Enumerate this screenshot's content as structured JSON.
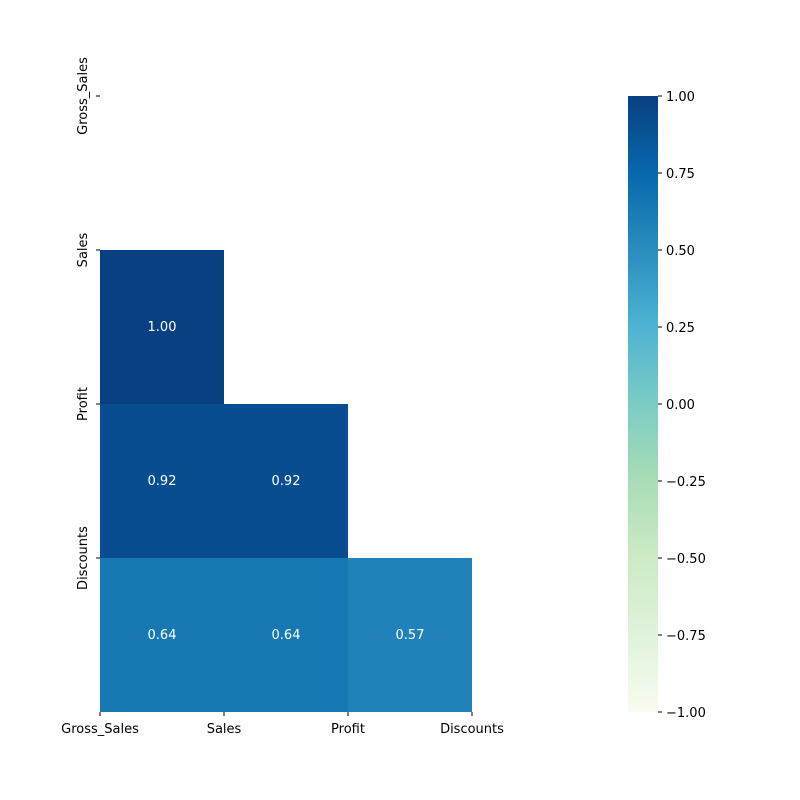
{
  "chart_data": {
    "type": "heatmap",
    "title": "",
    "xlabel": "",
    "ylabel": "",
    "mask": "upper-triangle",
    "x_labels": [
      "Gross_Sales",
      "Sales",
      "Profit",
      "Discounts"
    ],
    "y_labels": [
      "Gross_Sales",
      "Sales",
      "Profit",
      "Discounts"
    ],
    "cells": [
      {
        "row": 1,
        "col": 0,
        "value": 1.0,
        "label": "1.00"
      },
      {
        "row": 2,
        "col": 0,
        "value": 0.92,
        "label": "0.92"
      },
      {
        "row": 2,
        "col": 1,
        "value": 0.92,
        "label": "0.92"
      },
      {
        "row": 3,
        "col": 0,
        "value": 0.64,
        "label": "0.64"
      },
      {
        "row": 3,
        "col": 1,
        "value": 0.64,
        "label": "0.64"
      },
      {
        "row": 3,
        "col": 2,
        "value": 0.57,
        "label": "0.57"
      }
    ],
    "colorbar": {
      "colormap": "GnBu",
      "vmin": -1.0,
      "vmax": 1.0,
      "ticks": [
        1.0,
        0.75,
        0.5,
        0.25,
        0.0,
        -0.25,
        -0.5,
        -0.75,
        -1.0
      ],
      "tick_labels": [
        "1.00",
        "0.75",
        "0.50",
        "0.25",
        "0.00",
        "−0.25",
        "−0.50",
        "−0.75",
        "−1.00"
      ]
    },
    "colors": {
      "stops": [
        "#f7fcf0",
        "#e0f3db",
        "#ccebc5",
        "#a8ddb5",
        "#7bccc4",
        "#4eb3d3",
        "#2b8cbe",
        "#0868ac",
        "#084081"
      ],
      "annotation_text": "#ffffff",
      "axis_text": "#000000"
    }
  }
}
